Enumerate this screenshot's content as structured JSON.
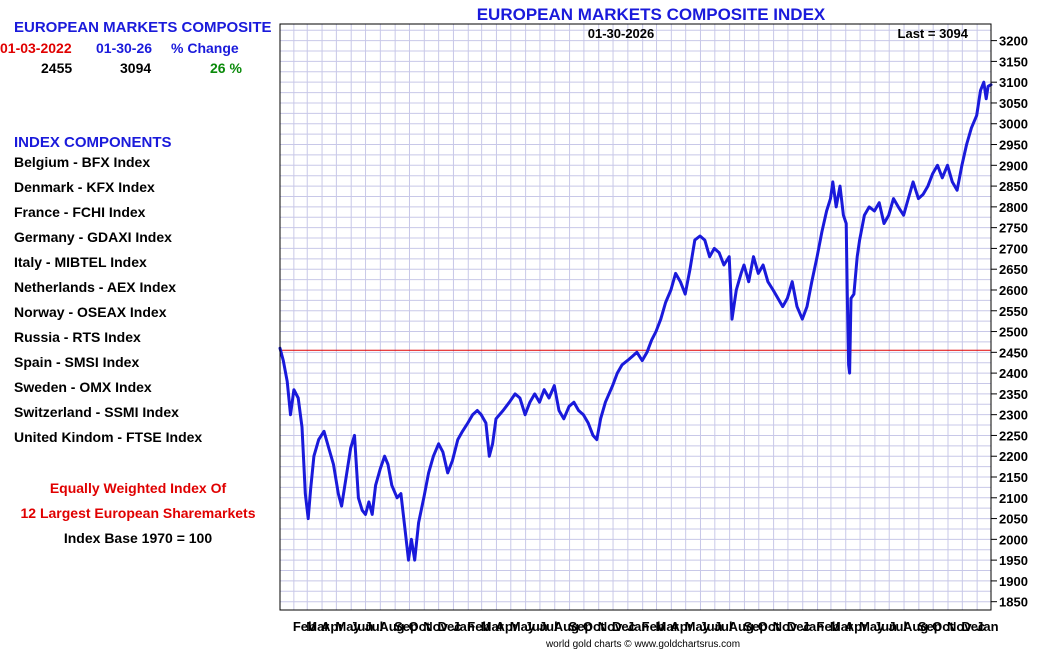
{
  "summary": {
    "title": "EUROPEAN MARKETS COMPOSITE",
    "start_label": "01-03-2022",
    "end_label": "01-30-26",
    "change_label": "% Change",
    "start_value": "2455",
    "end_value": "3094",
    "change_value": "26 %"
  },
  "components": {
    "title": "INDEX COMPONENTS",
    "items": [
      "Belgium - BFX Index",
      "Denmark - KFX Index",
      "France - FCHI Index",
      "Germany - GDAXI Index",
      "Italy - MIBTEL Index",
      "Netherlands - AEX Index",
      "Norway - OSEAX Index",
      "Russia - RTS Index",
      "Spain - SMSI Index",
      "Sweden - OMX Index",
      "Switzerland - SSMI Index",
      "United Kindom - FTSE Index"
    ]
  },
  "notes": {
    "line1": "Equally Weighted Index Of",
    "line2": "12 Largest European Sharemarkets",
    "line3": "Index Base 1970 = 100"
  },
  "colors": {
    "series": "#1a1adb",
    "reference": "#e00000",
    "grid": "#c8c8e8",
    "positive": "#0a8a0a"
  },
  "chart_data": {
    "type": "line",
    "title": "EUROPEAN MARKETS COMPOSITE INDEX",
    "date_label": "01-30-2026",
    "last_label": "Last = 3094",
    "credit": "world gold charts © www.goldchartsrus.com",
    "ylim": [
      1830,
      3240
    ],
    "yticks": [
      1850,
      1900,
      1950,
      2000,
      2050,
      2100,
      2150,
      2200,
      2250,
      2300,
      2350,
      2400,
      2450,
      2500,
      2550,
      2600,
      2650,
      2700,
      2750,
      2800,
      2850,
      2900,
      2950,
      3000,
      3050,
      3100,
      3150,
      3200
    ],
    "xlim": [
      "2022-01-03",
      "2026-01-30"
    ],
    "xticks": [
      {
        "label": "Feb",
        "date": "2022-02-01"
      },
      {
        "label": "Mar",
        "date": "2022-03-01"
      },
      {
        "label": "Apr",
        "date": "2022-04-01"
      },
      {
        "label": "May",
        "date": "2022-05-01"
      },
      {
        "label": "Jun",
        "date": "2022-06-01"
      },
      {
        "label": "Jul",
        "date": "2022-07-01"
      },
      {
        "label": "Aug",
        "date": "2022-08-01"
      },
      {
        "label": "Sep",
        "date": "2022-09-01"
      },
      {
        "label": "Oct",
        "date": "2022-10-01"
      },
      {
        "label": "Nov",
        "date": "2022-11-01"
      },
      {
        "label": "Dec",
        "date": "2022-12-01"
      },
      {
        "label": "Jan",
        "date": "2023-01-01"
      },
      {
        "label": "Feb",
        "date": "2023-02-01"
      },
      {
        "label": "Mar",
        "date": "2023-03-01"
      },
      {
        "label": "Apr",
        "date": "2023-04-01"
      },
      {
        "label": "May",
        "date": "2023-05-01"
      },
      {
        "label": "Jun",
        "date": "2023-06-01"
      },
      {
        "label": "Jul",
        "date": "2023-07-01"
      },
      {
        "label": "Aug",
        "date": "2023-08-01"
      },
      {
        "label": "Sep",
        "date": "2023-09-01"
      },
      {
        "label": "Oct",
        "date": "2023-10-01"
      },
      {
        "label": "Nov",
        "date": "2023-11-01"
      },
      {
        "label": "Dec",
        "date": "2023-12-01"
      },
      {
        "label": "Jan",
        "date": "2024-01-01"
      },
      {
        "label": "Feb",
        "date": "2024-02-01"
      },
      {
        "label": "Mar",
        "date": "2024-03-01"
      },
      {
        "label": "Apr",
        "date": "2024-04-01"
      },
      {
        "label": "May",
        "date": "2024-05-01"
      },
      {
        "label": "Jun",
        "date": "2024-06-01"
      },
      {
        "label": "Jul",
        "date": "2024-07-01"
      },
      {
        "label": "Aug",
        "date": "2024-08-01"
      },
      {
        "label": "Sep",
        "date": "2024-09-01"
      },
      {
        "label": "Oct",
        "date": "2024-10-01"
      },
      {
        "label": "Nov",
        "date": "2024-11-01"
      },
      {
        "label": "Dec",
        "date": "2024-12-01"
      },
      {
        "label": "Jan",
        "date": "2025-01-01"
      },
      {
        "label": "Feb",
        "date": "2025-02-01"
      },
      {
        "label": "Mar",
        "date": "2025-03-01"
      },
      {
        "label": "Apr",
        "date": "2025-04-01"
      },
      {
        "label": "May",
        "date": "2025-05-01"
      },
      {
        "label": "Jun",
        "date": "2025-06-01"
      },
      {
        "label": "Jul",
        "date": "2025-07-01"
      },
      {
        "label": "Aug",
        "date": "2025-08-01"
      },
      {
        "label": "Sep",
        "date": "2025-09-01"
      },
      {
        "label": "Oct",
        "date": "2025-10-01"
      },
      {
        "label": "Nov",
        "date": "2025-11-01"
      },
      {
        "label": "Dec",
        "date": "2025-12-01"
      },
      {
        "label": "Jan",
        "date": "2026-01-01"
      }
    ],
    "reference_line": 2455,
    "grid": true,
    "series": [
      {
        "points": [
          [
            "2022-01-03",
            2460
          ],
          [
            "2022-01-10",
            2430
          ],
          [
            "2022-01-18",
            2380
          ],
          [
            "2022-01-25",
            2300
          ],
          [
            "2022-02-01",
            2360
          ],
          [
            "2022-02-10",
            2340
          ],
          [
            "2022-02-18",
            2270
          ],
          [
            "2022-02-25",
            2110
          ],
          [
            "2022-03-03",
            2050
          ],
          [
            "2022-03-08",
            2120
          ],
          [
            "2022-03-15",
            2200
          ],
          [
            "2022-03-25",
            2240
          ],
          [
            "2022-04-05",
            2260
          ],
          [
            "2022-04-15",
            2220
          ],
          [
            "2022-04-25",
            2180
          ],
          [
            "2022-05-05",
            2110
          ],
          [
            "2022-05-12",
            2080
          ],
          [
            "2022-05-20",
            2140
          ],
          [
            "2022-05-31",
            2220
          ],
          [
            "2022-06-08",
            2250
          ],
          [
            "2022-06-16",
            2100
          ],
          [
            "2022-06-24",
            2070
          ],
          [
            "2022-07-01",
            2060
          ],
          [
            "2022-07-08",
            2090
          ],
          [
            "2022-07-15",
            2060
          ],
          [
            "2022-07-22",
            2130
          ],
          [
            "2022-08-01",
            2170
          ],
          [
            "2022-08-10",
            2200
          ],
          [
            "2022-08-17",
            2180
          ],
          [
            "2022-08-25",
            2130
          ],
          [
            "2022-09-05",
            2100
          ],
          [
            "2022-09-13",
            2110
          ],
          [
            "2022-09-22",
            2020
          ],
          [
            "2022-09-29",
            1950
          ],
          [
            "2022-10-05",
            2000
          ],
          [
            "2022-10-12",
            1950
          ],
          [
            "2022-10-20",
            2040
          ],
          [
            "2022-10-31",
            2100
          ],
          [
            "2022-11-10",
            2160
          ],
          [
            "2022-11-20",
            2200
          ],
          [
            "2022-12-01",
            2230
          ],
          [
            "2022-12-10",
            2210
          ],
          [
            "2022-12-20",
            2160
          ],
          [
            "2022-12-30",
            2190
          ],
          [
            "2023-01-10",
            2240
          ],
          [
            "2023-01-20",
            2260
          ],
          [
            "2023-01-31",
            2280
          ],
          [
            "2023-02-10",
            2300
          ],
          [
            "2023-02-20",
            2310
          ],
          [
            "2023-02-28",
            2300
          ],
          [
            "2023-03-10",
            2280
          ],
          [
            "2023-03-17",
            2200
          ],
          [
            "2023-03-24",
            2230
          ],
          [
            "2023-03-31",
            2290
          ],
          [
            "2023-04-15",
            2310
          ],
          [
            "2023-04-28",
            2330
          ],
          [
            "2023-05-10",
            2350
          ],
          [
            "2023-05-20",
            2340
          ],
          [
            "2023-05-31",
            2300
          ],
          [
            "2023-06-10",
            2330
          ],
          [
            "2023-06-20",
            2350
          ],
          [
            "2023-06-30",
            2330
          ],
          [
            "2023-07-10",
            2360
          ],
          [
            "2023-07-20",
            2340
          ],
          [
            "2023-07-31",
            2370
          ],
          [
            "2023-08-10",
            2310
          ],
          [
            "2023-08-20",
            2290
          ],
          [
            "2023-08-31",
            2320
          ],
          [
            "2023-09-10",
            2330
          ],
          [
            "2023-09-20",
            2310
          ],
          [
            "2023-09-30",
            2300
          ],
          [
            "2023-10-10",
            2280
          ],
          [
            "2023-10-20",
            2250
          ],
          [
            "2023-10-28",
            2240
          ],
          [
            "2023-11-05",
            2290
          ],
          [
            "2023-11-15",
            2330
          ],
          [
            "2023-11-30",
            2370
          ],
          [
            "2023-12-10",
            2400
          ],
          [
            "2023-12-20",
            2420
          ],
          [
            "2023-12-31",
            2430
          ],
          [
            "2024-01-10",
            2440
          ],
          [
            "2024-01-20",
            2450
          ],
          [
            "2024-01-31",
            2430
          ],
          [
            "2024-02-10",
            2450
          ],
          [
            "2024-02-20",
            2480
          ],
          [
            "2024-02-29",
            2500
          ],
          [
            "2024-03-10",
            2530
          ],
          [
            "2024-03-20",
            2570
          ],
          [
            "2024-03-31",
            2600
          ],
          [
            "2024-04-10",
            2640
          ],
          [
            "2024-04-20",
            2620
          ],
          [
            "2024-04-30",
            2590
          ],
          [
            "2024-05-10",
            2650
          ],
          [
            "2024-05-20",
            2720
          ],
          [
            "2024-05-31",
            2730
          ],
          [
            "2024-06-10",
            2720
          ],
          [
            "2024-06-20",
            2680
          ],
          [
            "2024-06-30",
            2700
          ],
          [
            "2024-07-10",
            2690
          ],
          [
            "2024-07-20",
            2660
          ],
          [
            "2024-07-31",
            2680
          ],
          [
            "2024-08-06",
            2530
          ],
          [
            "2024-08-15",
            2600
          ],
          [
            "2024-08-25",
            2640
          ],
          [
            "2024-08-31",
            2660
          ],
          [
            "2024-09-10",
            2620
          ],
          [
            "2024-09-20",
            2680
          ],
          [
            "2024-09-30",
            2640
          ],
          [
            "2024-10-10",
            2660
          ],
          [
            "2024-10-20",
            2620
          ],
          [
            "2024-10-31",
            2600
          ],
          [
            "2024-11-10",
            2580
          ],
          [
            "2024-11-20",
            2560
          ],
          [
            "2024-11-30",
            2580
          ],
          [
            "2024-12-10",
            2620
          ],
          [
            "2024-12-20",
            2560
          ],
          [
            "2024-12-31",
            2530
          ],
          [
            "2025-01-10",
            2560
          ],
          [
            "2025-01-20",
            2620
          ],
          [
            "2025-01-31",
            2680
          ],
          [
            "2025-02-10",
            2740
          ],
          [
            "2025-02-20",
            2790
          ],
          [
            "2025-02-28",
            2820
          ],
          [
            "2025-03-05",
            2860
          ],
          [
            "2025-03-12",
            2800
          ],
          [
            "2025-03-20",
            2850
          ],
          [
            "2025-03-27",
            2780
          ],
          [
            "2025-04-02",
            2760
          ],
          [
            "2025-04-04",
            2600
          ],
          [
            "2025-04-07",
            2420
          ],
          [
            "2025-04-09",
            2400
          ],
          [
            "2025-04-12",
            2580
          ],
          [
            "2025-04-18",
            2590
          ],
          [
            "2025-04-25",
            2680
          ],
          [
            "2025-04-30",
            2720
          ],
          [
            "2025-05-10",
            2780
          ],
          [
            "2025-05-20",
            2800
          ],
          [
            "2025-05-31",
            2790
          ],
          [
            "2025-06-10",
            2810
          ],
          [
            "2025-06-20",
            2760
          ],
          [
            "2025-06-30",
            2780
          ],
          [
            "2025-07-10",
            2820
          ],
          [
            "2025-07-20",
            2800
          ],
          [
            "2025-07-31",
            2780
          ],
          [
            "2025-08-10",
            2820
          ],
          [
            "2025-08-20",
            2860
          ],
          [
            "2025-08-31",
            2820
          ],
          [
            "2025-09-10",
            2830
          ],
          [
            "2025-09-20",
            2850
          ],
          [
            "2025-09-30",
            2880
          ],
          [
            "2025-10-10",
            2900
          ],
          [
            "2025-10-20",
            2870
          ],
          [
            "2025-10-31",
            2900
          ],
          [
            "2025-11-10",
            2860
          ],
          [
            "2025-11-20",
            2840
          ],
          [
            "2025-11-30",
            2900
          ],
          [
            "2025-12-10",
            2950
          ],
          [
            "2025-12-20",
            2990
          ],
          [
            "2025-12-31",
            3020
          ],
          [
            "2026-01-08",
            3080
          ],
          [
            "2026-01-15",
            3100
          ],
          [
            "2026-01-20",
            3060
          ],
          [
            "2026-01-24",
            3090
          ],
          [
            "2026-01-30",
            3094
          ]
        ]
      }
    ]
  }
}
